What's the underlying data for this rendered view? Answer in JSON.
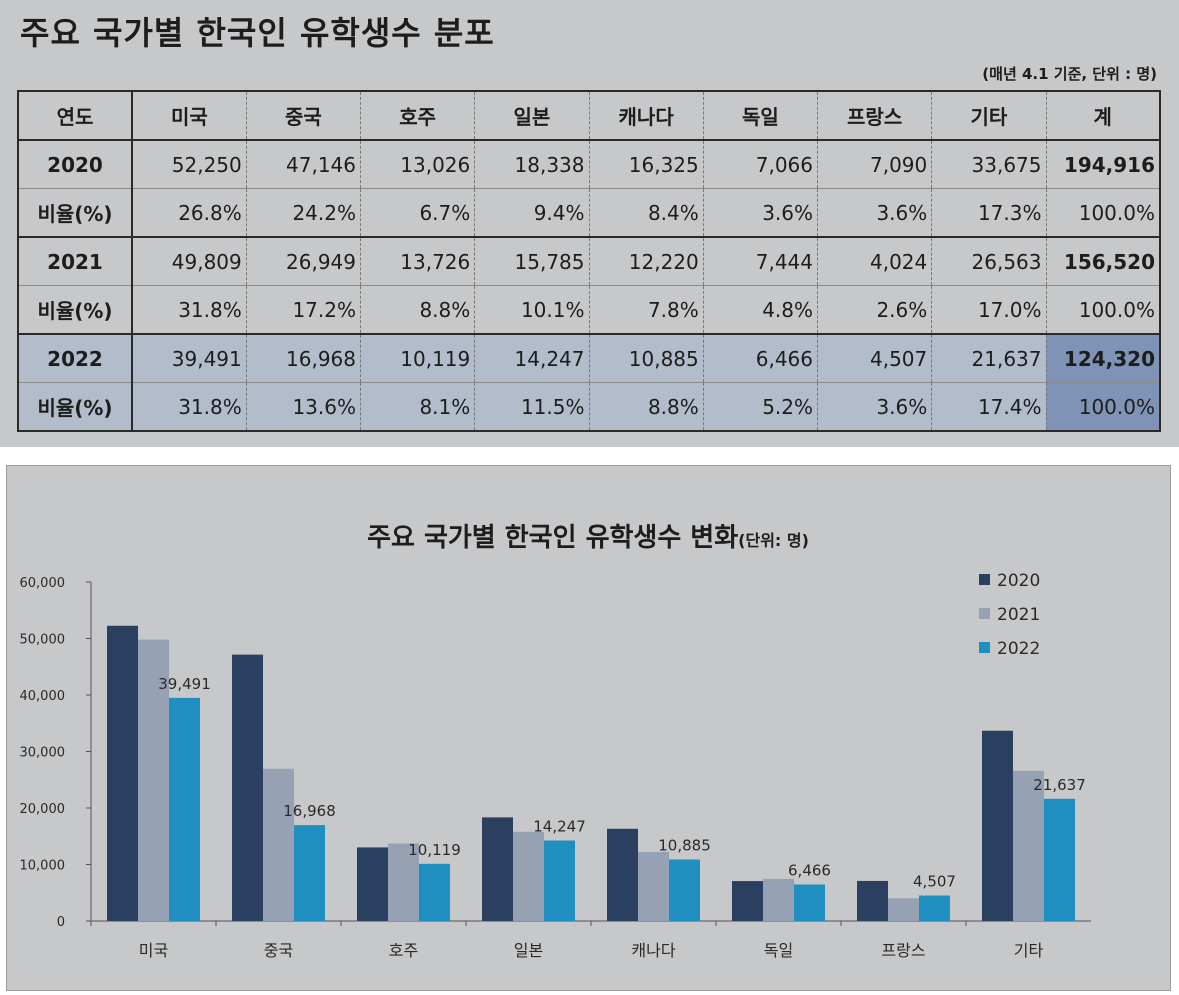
{
  "table": {
    "title": "주요 국가별 한국인 유학생수 분포",
    "note": "(매년 4.1 기준, 단위 : 명)",
    "headers": [
      "연도",
      "미국",
      "중국",
      "호주",
      "일본",
      "캐나다",
      "독일",
      "프랑스",
      "기타",
      "계"
    ],
    "rows": [
      {
        "label": "2020",
        "cells": [
          "52,250",
          "47,146",
          "13,026",
          "18,338",
          "16,325",
          "7,066",
          "7,090",
          "33,675",
          "194,916"
        ]
      },
      {
        "label": "비율(%)",
        "cells": [
          "26.8%",
          "24.2%",
          "6.7%",
          "9.4%",
          "8.4%",
          "3.6%",
          "3.6%",
          "17.3%",
          "100.0%"
        ]
      },
      {
        "label": "2021",
        "cells": [
          "49,809",
          "26,949",
          "13,726",
          "15,785",
          "12,220",
          "7,444",
          "4,024",
          "26,563",
          "156,520"
        ]
      },
      {
        "label": "비율(%)",
        "cells": [
          "31.8%",
          "17.2%",
          "8.8%",
          "10.1%",
          "7.8%",
          "4.8%",
          "2.6%",
          "17.0%",
          "100.0%"
        ]
      },
      {
        "label": "2022",
        "cells": [
          "39,491",
          "16,968",
          "10,119",
          "14,247",
          "10,885",
          "6,466",
          "4,507",
          "21,637",
          "124,320"
        ]
      },
      {
        "label": "비율(%)",
        "cells": [
          "31.8%",
          "13.6%",
          "8.1%",
          "11.5%",
          "8.8%",
          "5.2%",
          "3.6%",
          "17.4%",
          "100.0%"
        ]
      }
    ]
  },
  "chart_data": {
    "type": "bar",
    "title": "주요 국가별 한국인 유학생수 변화",
    "title_unit": "(단위: 명)",
    "categories": [
      "미국",
      "중국",
      "호주",
      "일본",
      "캐나다",
      "독일",
      "프랑스",
      "기타"
    ],
    "series": [
      {
        "name": "2020",
        "color": "#2b3f61",
        "values": [
          52250,
          47146,
          13026,
          18338,
          16325,
          7066,
          7090,
          33675
        ]
      },
      {
        "name": "2021",
        "color": "#97a1b4",
        "values": [
          49809,
          26949,
          13726,
          15785,
          12220,
          7444,
          4024,
          26563
        ]
      },
      {
        "name": "2022",
        "color": "#1f8fbf",
        "values": [
          39491,
          16968,
          10119,
          14247,
          10885,
          6466,
          4507,
          21637
        ],
        "data_labels": [
          "39,491",
          "16,968",
          "10,119",
          "14,247",
          "10,885",
          "6,466",
          "4,507",
          "21,637"
        ]
      }
    ],
    "ylim": [
      0,
      60000
    ],
    "yticks": [
      0,
      10000,
      20000,
      30000,
      40000,
      50000,
      60000
    ],
    "ytick_labels": [
      "0",
      "10,000",
      "20,000",
      "30,000",
      "40,000",
      "50,000",
      "60,000"
    ],
    "grid": false,
    "legend_position": "top-right"
  }
}
